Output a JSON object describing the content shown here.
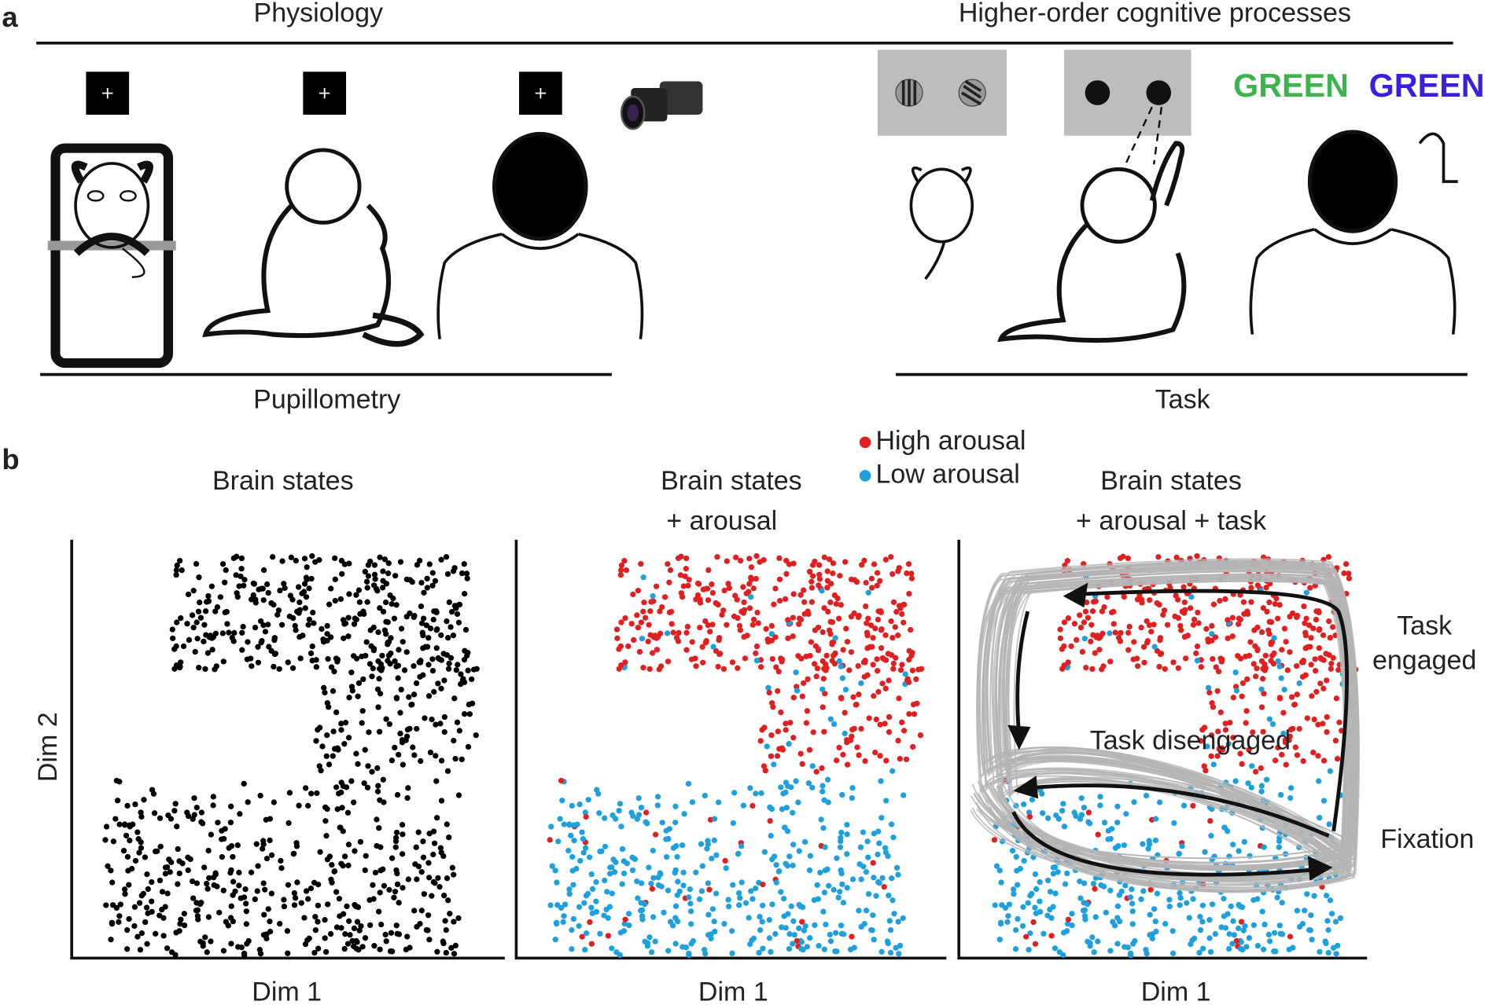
{
  "panel_a": {
    "label": "a",
    "physiology": "Physiology",
    "higher_order": "Higher-order cognitive processes",
    "pupillometry": "Pupillometry",
    "task": "Task",
    "stroop": [
      "GREEN",
      "GREEN"
    ]
  },
  "panel_b": {
    "label": "b",
    "titles": [
      [
        "Brain states"
      ],
      [
        "Brain states",
        "+ arousal"
      ],
      [
        "Brain states",
        "+ arousal + task"
      ]
    ],
    "legend": [
      "High arousal",
      "Low arousal"
    ],
    "x_label": "Dim 1",
    "y_label": "Dim 2",
    "task_engaged": [
      "Task",
      "engaged"
    ],
    "task_disengaged": "Task disengaged",
    "fixation": "Fixation"
  }
}
